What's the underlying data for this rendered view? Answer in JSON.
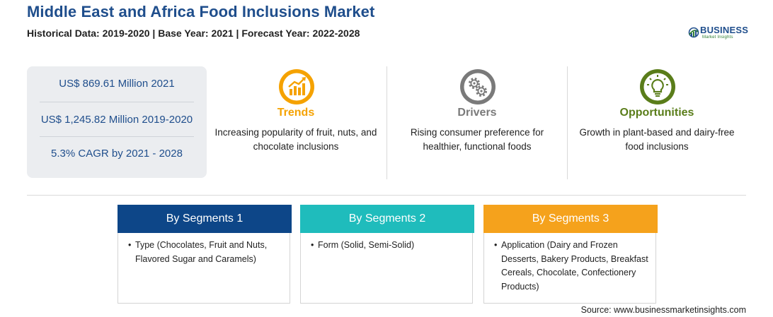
{
  "header": {
    "title": "Middle East and Africa Food Inclusions Market",
    "subtitle": "Historical Data: 2019-2020 | Base Year: 2021 | Forecast Year: 2022-2028"
  },
  "logo": {
    "name": "BUSINESS",
    "tagline": "Market Insights",
    "colors": {
      "blue": "#1f4e8c",
      "green": "#2e7d32"
    }
  },
  "stats": [
    {
      "text": "US$ 869.61 Million 2021"
    },
    {
      "text": "US$ 1,245.82 Million 2019-2020"
    },
    {
      "text": "5.3% CAGR by 2021 - 2028"
    }
  ],
  "columns": [
    {
      "title": "Trends",
      "icon": "trend-chart-icon",
      "color": "#f5a200",
      "text": "Increasing popularity of fruit, nuts, and chocolate inclusions"
    },
    {
      "title": "Drivers",
      "icon": "gears-icon",
      "color": "#7a7a7a",
      "text": "Rising consumer preference for healthier, functional foods"
    },
    {
      "title": "Opportunities",
      "icon": "lightbulb-icon",
      "color": "#5a7d1a",
      "text": "Growth in plant-based and dairy-free food inclusions"
    }
  ],
  "segments": [
    {
      "title": "By Segments 1",
      "color": "#0d4688",
      "bullet": "•",
      "text": "Type (Chocolates, Fruit and Nuts, Flavored Sugar and Caramels)"
    },
    {
      "title": "By Segments 2",
      "color": "#1fbcbc",
      "bullet": "•",
      "text": "Form (Solid, Semi-Solid)"
    },
    {
      "title": "By Segments 3",
      "color": "#f5a21c",
      "bullet": "•",
      "text": "Application (Dairy and Frozen Desserts, Bakery Products, Breakfast Cereals, Chocolate, Confectionery Products)"
    }
  ],
  "footer": {
    "source": "Source: www.businessmarketinsights.com"
  }
}
